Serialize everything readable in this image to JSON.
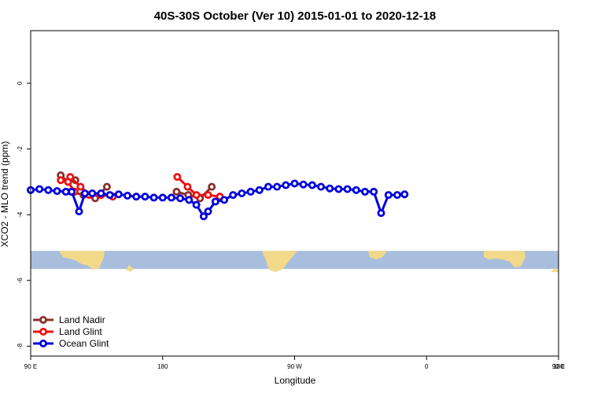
{
  "chart_data": {
    "type": "line",
    "title": "40S-30S October (Ver 10)   2015-01-01 to 2020-12-18",
    "xlabel": "Longitude",
    "ylabel": "XCO2 - MLO trend (ppm)",
    "xlim": [
      90,
      450
    ],
    "ylim": [
      -8.3,
      1.6
    ],
    "x_ticks": [
      {
        "value": 90,
        "label": "90 E"
      },
      {
        "value": 180,
        "label": "180"
      },
      {
        "value": 270,
        "label": "90 W"
      },
      {
        "value": 360,
        "label": "0"
      },
      {
        "value": 450,
        "label": "90 E"
      },
      {
        "value": 540,
        "label": "180"
      }
    ],
    "y_ticks": [
      0,
      -2,
      -4,
      -6,
      -8
    ],
    "legend_position": "bottom-left",
    "map_strip": {
      "y_top": -5.1,
      "y_bottom": -5.65,
      "ocean_color": "#a8bedd",
      "land_color": "#f2d98a"
    },
    "series": [
      {
        "name": "Land Nadir",
        "color": "#8b2e2e",
        "segments": [
          [
            [
              117.5,
              -3.3
            ],
            [
              126,
              -3.4
            ],
            [
              134,
              -3.5
            ],
            [
              142,
              -3.15
            ]
          ],
          [
            [
              110.5,
              -2.8
            ],
            [
              115.5,
              -3.0
            ],
            [
              120.5,
              -2.95
            ]
          ],
          [
            [
              189.5,
              -3.3
            ],
            [
              197.5,
              -3.4
            ],
            [
              205.5,
              -3.5
            ],
            [
              213.5,
              -3.15
            ]
          ]
        ]
      },
      {
        "name": "Land Glint",
        "color": "#ee1111",
        "segments": [
          [
            [
              117,
              -2.85
            ],
            [
              124,
              -3.15
            ],
            [
              130,
              -3.4
            ],
            [
              138,
              -3.4
            ],
            [
              146,
              -3.45
            ]
          ],
          [
            [
              110.5,
              -2.95
            ],
            [
              115.5,
              -3.0
            ],
            [
              120,
              -3.3
            ]
          ],
          [
            [
              190,
              -2.85
            ],
            [
              197,
              -3.15
            ],
            [
              203,
              -3.4
            ],
            [
              211,
              -3.4
            ],
            [
              219,
              -3.45
            ]
          ]
        ]
      },
      {
        "name": "Ocean Glint",
        "color": "#0000dd",
        "segments": [
          [
            [
              90,
              -3.25
            ],
            [
              96,
              -3.22
            ],
            [
              102,
              -3.25
            ],
            [
              108,
              -3.28
            ],
            [
              114,
              -3.3
            ],
            [
              118,
              -3.3
            ],
            [
              123,
              -3.9
            ],
            [
              127,
              -3.35
            ],
            [
              132,
              -3.35
            ],
            [
              138,
              -3.35
            ],
            [
              144,
              -3.4
            ],
            [
              150,
              -3.38
            ],
            [
              156,
              -3.42
            ],
            [
              162,
              -3.45
            ],
            [
              168,
              -3.45
            ],
            [
              174,
              -3.48
            ],
            [
              180,
              -3.48
            ],
            [
              186,
              -3.48
            ],
            [
              192,
              -3.5
            ],
            [
              198,
              -3.55
            ],
            [
              203,
              -3.7
            ],
            [
              208,
              -4.05
            ],
            [
              211,
              -3.9
            ],
            [
              216,
              -3.6
            ],
            [
              222,
              -3.55
            ],
            [
              228,
              -3.4
            ],
            [
              234,
              -3.35
            ],
            [
              240,
              -3.3
            ],
            [
              246,
              -3.25
            ],
            [
              252,
              -3.15
            ],
            [
              258,
              -3.15
            ],
            [
              264,
              -3.1
            ],
            [
              270,
              -3.05
            ],
            [
              276,
              -3.08
            ],
            [
              282,
              -3.1
            ],
            [
              288,
              -3.15
            ],
            [
              294,
              -3.2
            ],
            [
              300,
              -3.22
            ],
            [
              306,
              -3.22
            ],
            [
              312,
              -3.25
            ],
            [
              318,
              -3.3
            ],
            [
              324,
              -3.3
            ],
            [
              329,
              -3.95
            ],
            [
              334,
              -3.4
            ],
            [
              340,
              -3.4
            ],
            [
              345,
              -3.38
            ]
          ]
        ]
      }
    ]
  }
}
